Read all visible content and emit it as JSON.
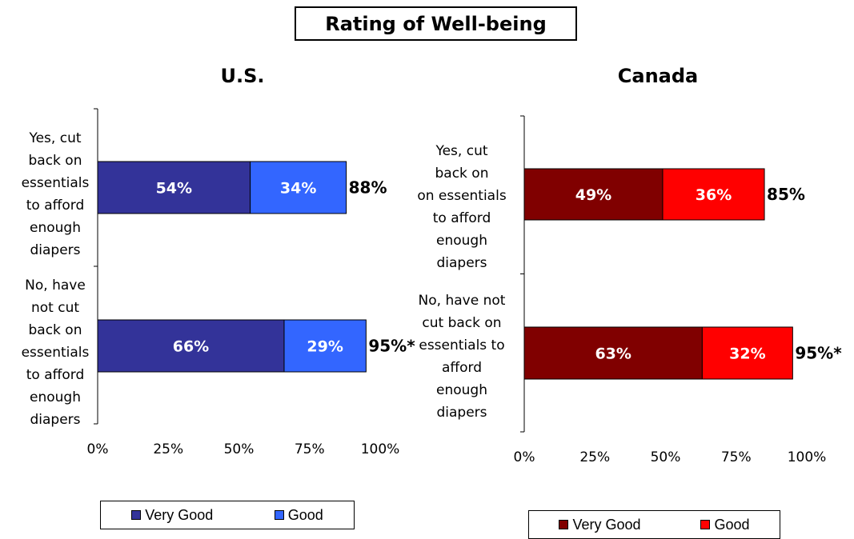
{
  "title": "Rating of Well-being",
  "colors": {
    "us_very_good": "#333399",
    "us_good": "#3366FF",
    "ca_very_good": "#800000",
    "ca_good": "#FF0000"
  },
  "chart_data": [
    {
      "type": "bar",
      "orientation": "horizontal",
      "stacked": true,
      "title": "U.S.",
      "categories": [
        "Yes, cut back on essentials to afford enough diapers",
        "No, have not cut back on essentials to afford enough diapers"
      ],
      "category_lines": [
        [
          "Yes, cut",
          "back on",
          "essentials",
          "to afford",
          "enough",
          "diapers"
        ],
        [
          "No, have",
          "not cut",
          "back on",
          "essentials",
          "to afford",
          "enough",
          "diapers"
        ]
      ],
      "series": [
        {
          "name": "Very Good",
          "values": [
            54,
            66
          ],
          "labels": [
            "54%",
            "66%"
          ]
        },
        {
          "name": "Good",
          "values": [
            34,
            29
          ],
          "labels": [
            "34%",
            "29%"
          ]
        }
      ],
      "totals": [
        "88%",
        "95%*"
      ],
      "xlim": [
        0,
        100
      ],
      "xticks": [
        "0%",
        "25%",
        "50%",
        "75%",
        "100%"
      ],
      "legend_position": "bottom",
      "legend": [
        "Very Good",
        "Good"
      ]
    },
    {
      "type": "bar",
      "orientation": "horizontal",
      "stacked": true,
      "title": "Canada",
      "categories": [
        "Yes, cut back on essentials to afford enough diapers",
        "No, have not cut back on essentials to afford enough diapers"
      ],
      "category_lines": [
        [
          "Yes, cut",
          "back on",
          "on essentials",
          "to afford",
          "enough",
          "diapers"
        ],
        [
          "No, have not",
          "cut back on",
          "essentials to",
          "afford",
          "enough",
          "diapers"
        ]
      ],
      "series": [
        {
          "name": "Very Good",
          "values": [
            49,
            63
          ],
          "labels": [
            "49%",
            "63%"
          ]
        },
        {
          "name": "Good",
          "values": [
            36,
            32
          ],
          "labels": [
            "36%",
            "32%"
          ]
        }
      ],
      "totals": [
        "85%",
        "95%*"
      ],
      "xlim": [
        0,
        100
      ],
      "xticks": [
        "0%",
        "25%",
        "50%",
        "75%",
        "100%"
      ],
      "legend_position": "bottom",
      "legend": [
        "Very Good",
        "Good"
      ]
    }
  ]
}
